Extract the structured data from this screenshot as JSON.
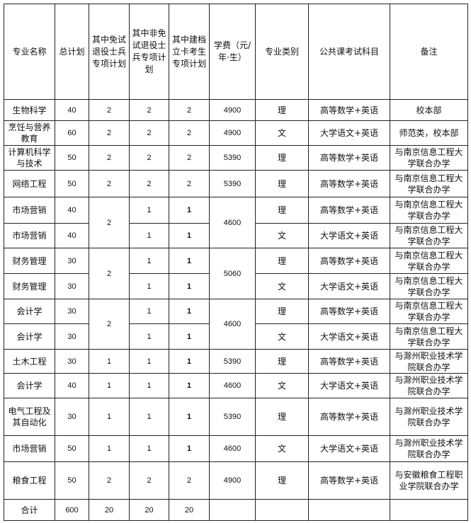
{
  "headers": [
    "专业名称",
    "总计划",
    "其中免试退役士兵专项计划",
    "其中非免试退役士兵专项计划",
    "其中建档立卡考生专项计划",
    "学费（元/年·生）",
    "专业类别",
    "公共课考试科目",
    "备注"
  ],
  "rows": [
    [
      "生物科学",
      "40",
      "2",
      "2",
      "2",
      "4900",
      "理",
      "高等数学+英语",
      "校本部"
    ],
    [
      "烹饪与营养教育",
      "60",
      "2",
      "2",
      "2",
      "4900",
      "文",
      "大学语文+英语",
      "师范类，校本部"
    ],
    [
      "计算机科学与技术",
      "50",
      "2",
      "2",
      "2",
      "5390",
      "理",
      "高等数学+英语",
      "与南京信息工程大学联合办学"
    ],
    [
      "网络工程",
      "50",
      "2",
      "2",
      "2",
      "5390",
      "理",
      "高等数学+英语",
      "与南京信息工程大学联合办学"
    ],
    [
      "市场营销",
      "40",
      "2",
      "1",
      "1",
      "4600",
      "理",
      "高等数学+英语",
      "与南京信息工程大学联合办学"
    ],
    [
      "市场营销",
      "40",
      null,
      "1",
      "1",
      null,
      "文",
      "大学语文+英语",
      "与南京信息工程大学联合办学"
    ],
    [
      "财务管理",
      "30",
      "2",
      "1",
      "1",
      "5060",
      "理",
      "高等数学+英语",
      "与南京信息工程大学联合办学"
    ],
    [
      "财务管理",
      "30",
      null,
      "1",
      "1",
      null,
      "文",
      "大学语文+英语",
      "与南京信息工程大学联合办学"
    ],
    [
      "会计学",
      "30",
      "2",
      "1",
      "1",
      "4600",
      "理",
      "高等数学+英语",
      "与南京信息工程大学联合办学"
    ],
    [
      "会计学",
      "30",
      null,
      "1",
      "1",
      null,
      "文",
      "大学语文+英语",
      "与南京信息工程大学联合办学"
    ],
    [
      "土木工程",
      "30",
      "1",
      "1",
      "1",
      "5390",
      "理",
      "高等数学+英语",
      "与滁州职业技术学院联合办学"
    ],
    [
      "会计学",
      "40",
      "1",
      "1",
      "1",
      "4600",
      "文",
      "大学语文+英语",
      "与滁州职业技术学院联合办学"
    ],
    [
      "电气工程及其自动化",
      "30",
      "1",
      "1",
      "1",
      "5390",
      "理",
      "高等数学+英语",
      "与滁州职业技术学院联合办学"
    ],
    [
      "市场营销",
      "50",
      "1",
      "1",
      "1",
      "4600",
      "文",
      "大学语文+英语",
      "与滁州职业技术学院联合办学"
    ],
    [
      "粮食工程",
      "50",
      "2",
      "2",
      "2",
      "4900",
      "理",
      "高等数学+英语",
      "与安徽粮食工程职业学院联合办学"
    ],
    [
      "合计",
      "600",
      "20",
      "20",
      "20",
      "",
      "",
      "",
      ""
    ]
  ]
}
